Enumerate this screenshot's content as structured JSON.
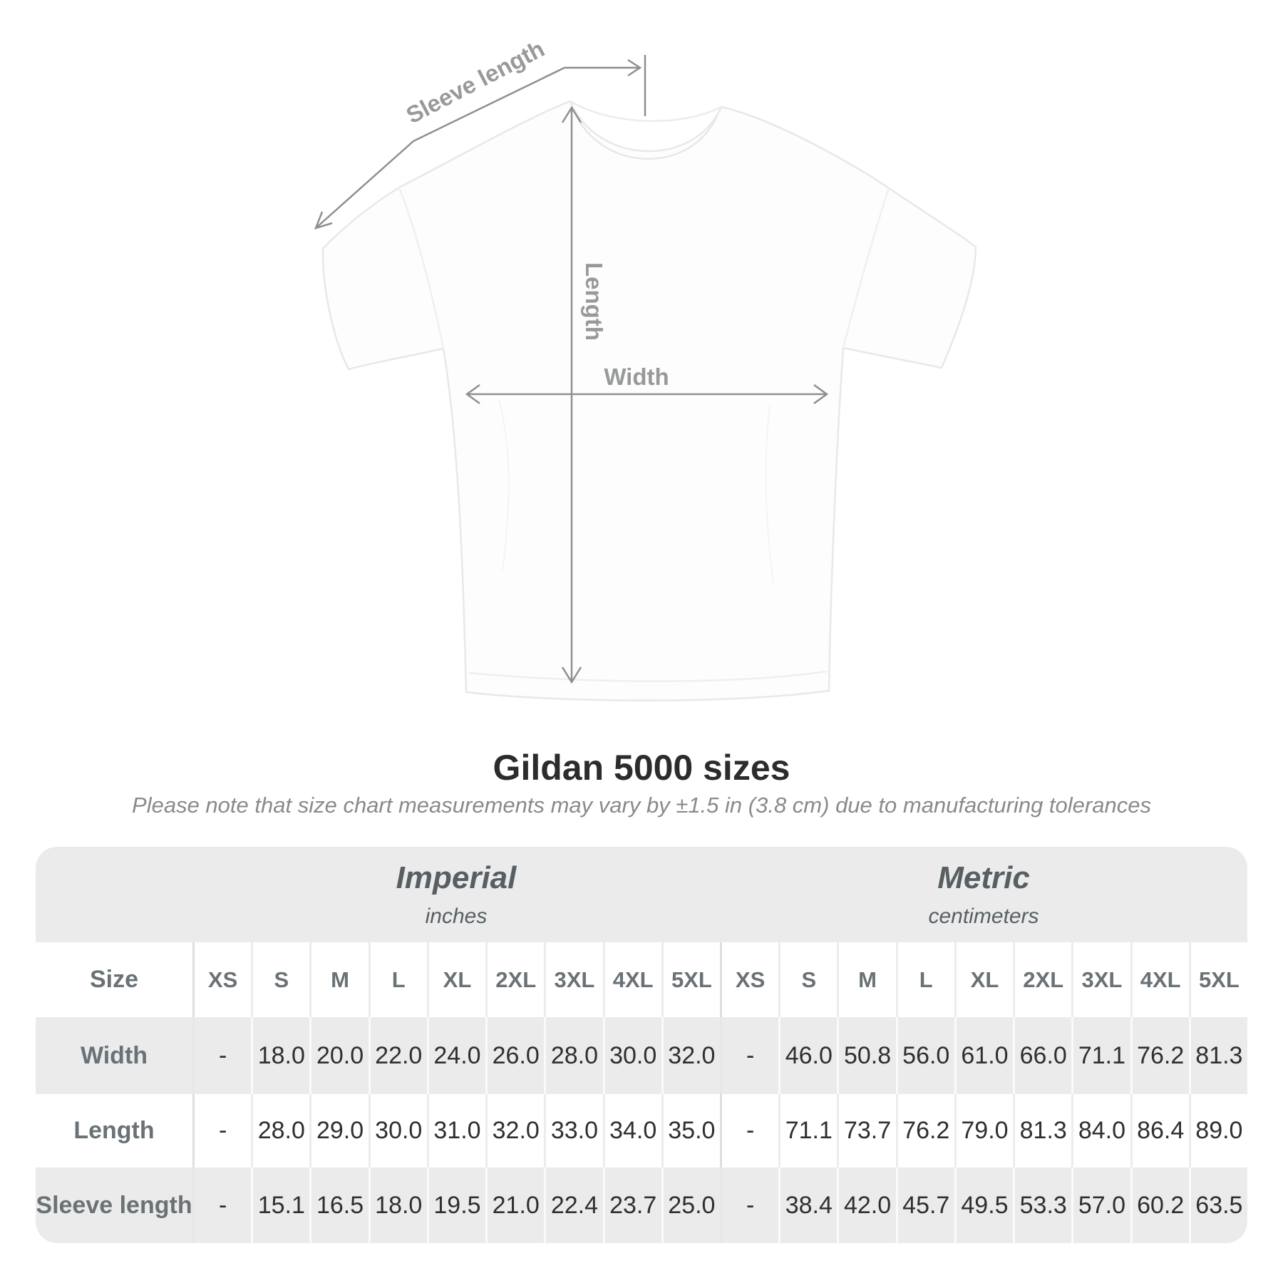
{
  "diagram": {
    "sleeve_length_label": "Sleeve length",
    "length_label": "Length",
    "width_label": "Width"
  },
  "heading": {
    "title": "Gildan 5000 sizes",
    "subtitle": "Please note that size chart measurements may vary by ±1.5 in (3.8 cm) due to manufacturing tolerances"
  },
  "table": {
    "size_label": "Size",
    "sizes": [
      "XS",
      "S",
      "M",
      "L",
      "XL",
      "2XL",
      "3XL",
      "4XL",
      "5XL"
    ],
    "sections": [
      {
        "name": "Imperial",
        "unit": "inches"
      },
      {
        "name": "Metric",
        "unit": "centimeters"
      }
    ],
    "rows": [
      {
        "label": "Width",
        "imperial": [
          "-",
          "18.0",
          "20.0",
          "22.0",
          "24.0",
          "26.0",
          "28.0",
          "30.0",
          "32.0"
        ],
        "metric": [
          "-",
          "46.0",
          "50.8",
          "56.0",
          "61.0",
          "66.0",
          "71.1",
          "76.2",
          "81.3"
        ]
      },
      {
        "label": "Length",
        "imperial": [
          "-",
          "28.0",
          "29.0",
          "30.0",
          "31.0",
          "32.0",
          "33.0",
          "34.0",
          "35.0"
        ],
        "metric": [
          "-",
          "71.1",
          "73.7",
          "76.2",
          "79.0",
          "81.3",
          "84.0",
          "86.4",
          "89.0"
        ]
      },
      {
        "label": "Sleeve length",
        "imperial": [
          "-",
          "15.1",
          "16.5",
          "18.0",
          "19.5",
          "21.0",
          "22.4",
          "23.7",
          "25.0"
        ],
        "metric": [
          "-",
          "38.4",
          "42.0",
          "45.7",
          "49.5",
          "53.3",
          "57.0",
          "60.2",
          "63.5"
        ]
      }
    ]
  },
  "colors": {
    "row_gray": "#ebebeb",
    "measure_line": "#8f8f8f",
    "measure_label": "#97999b",
    "title_text": "#2c2c2c",
    "table_header_text": "#6a7276",
    "value_text": "#2f2f2f"
  }
}
